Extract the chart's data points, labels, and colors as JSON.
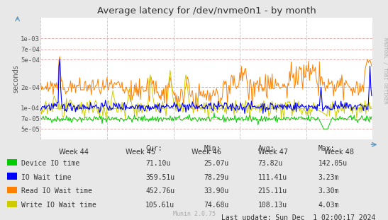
{
  "title": "Average latency for /dev/nvme0n1 - by month",
  "ylabel": "seconds",
  "watermark": "Munin 2.0.75",
  "side_label": "RRDTOOL / TOBI OETIKER",
  "background_color": "#e8e8e8",
  "plot_bg_color": "#ffffff",
  "grid_color_h": "#e8b0b0",
  "grid_color_v": "#cccccc",
  "x_tick_labels": [
    "Week 44",
    "Week 45",
    "Week 46",
    "Week 47",
    "Week 48"
  ],
  "y_ticks": [
    5e-05,
    7e-05,
    0.0001,
    0.0002,
    0.0005,
    0.0007,
    0.001
  ],
  "y_tick_labels": [
    "5e-05",
    "7e-05",
    "1e-04",
    "2e-04",
    "5e-04",
    "7e-04",
    "1e-03"
  ],
  "ylim": [
    3.5e-05,
    0.002
  ],
  "xlim": [
    0,
    400
  ],
  "legend": [
    {
      "label": "Device IO time",
      "color": "#00cc00"
    },
    {
      "label": "IO Wait time",
      "color": "#0000ff"
    },
    {
      "label": "Read IO Wait time",
      "color": "#ff8000"
    },
    {
      "label": "Write IO Wait time",
      "color": "#cccc00"
    }
  ],
  "legend_stats": [
    {
      "cur": "71.10u",
      "min": "25.07u",
      "avg": "73.82u",
      "max": "142.05u"
    },
    {
      "cur": "359.51u",
      "min": "78.29u",
      "avg": "111.41u",
      "max": "3.23m"
    },
    {
      "cur": "452.76u",
      "min": "33.90u",
      "avg": "215.11u",
      "max": "3.30m"
    },
    {
      "cur": "105.61u",
      "min": "74.68u",
      "avg": "108.13u",
      "max": "4.03m"
    }
  ],
  "last_update": "Last update: Sun Dec  1 02:00:17 2024"
}
